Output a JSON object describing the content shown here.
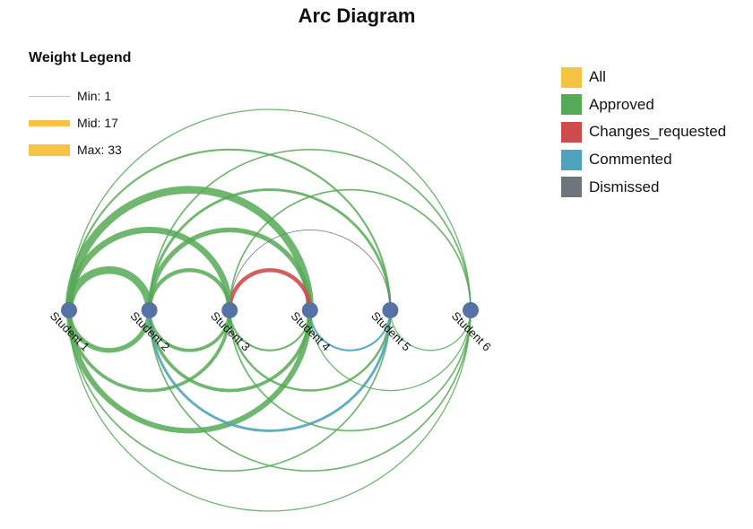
{
  "title": "Arc Diagram",
  "weight_legend": {
    "title": "Weight Legend",
    "items": [
      {
        "label": "Min: 1",
        "weight": 1
      },
      {
        "label": "Mid: 17",
        "weight": 17
      },
      {
        "label": "Max: 33",
        "weight": 33
      }
    ],
    "color": "#f6c343"
  },
  "type_legend": [
    {
      "label": "All",
      "color": "#f6c343"
    },
    {
      "label": "Approved",
      "color": "#56a956"
    },
    {
      "label": "Changes_requested",
      "color": "#cf4b4b"
    },
    {
      "label": "Commented",
      "color": "#4fa3bd"
    },
    {
      "label": "Dismissed",
      "color": "#6d747c"
    }
  ],
  "chart_data": {
    "type": "arc",
    "nodes": [
      "Student 1",
      "Student 2",
      "Student 3",
      "Student 4",
      "Student 5",
      "Student 6"
    ],
    "node_color": "#5472a5",
    "links": [
      {
        "source": "Student 1",
        "target": "Student 2",
        "type": "Approved",
        "weight": 20,
        "side": "above"
      },
      {
        "source": "Student 1",
        "target": "Student 3",
        "type": "Approved",
        "weight": 16,
        "side": "above"
      },
      {
        "source": "Student 1",
        "target": "Student 4",
        "type": "Approved",
        "weight": 20,
        "side": "above"
      },
      {
        "source": "Student 1",
        "target": "Student 5",
        "type": "Approved",
        "weight": 4,
        "side": "above"
      },
      {
        "source": "Student 1",
        "target": "Student 6",
        "type": "Approved",
        "weight": 2,
        "side": "above"
      },
      {
        "source": "Student 2",
        "target": "Student 3",
        "type": "Approved",
        "weight": 10,
        "side": "above"
      },
      {
        "source": "Student 2",
        "target": "Student 4",
        "type": "Approved",
        "weight": 12,
        "side": "above"
      },
      {
        "source": "Student 2",
        "target": "Student 5",
        "type": "Approved",
        "weight": 6,
        "side": "above"
      },
      {
        "source": "Student 2",
        "target": "Student 6",
        "type": "Approved",
        "weight": 3,
        "side": "above"
      },
      {
        "source": "Student 3",
        "target": "Student 4",
        "type": "Changes_requested",
        "weight": 10,
        "side": "above"
      },
      {
        "source": "Student 3",
        "target": "Student 5",
        "type": "Dismissed",
        "weight": 1,
        "side": "above"
      },
      {
        "source": "Student 3",
        "target": "Student 6",
        "type": "Approved",
        "weight": 3,
        "side": "above"
      },
      {
        "source": "Student 1",
        "target": "Student 2",
        "type": "Approved",
        "weight": 12,
        "side": "below"
      },
      {
        "source": "Student 1",
        "target": "Student 3",
        "type": "Approved",
        "weight": 8,
        "side": "below"
      },
      {
        "source": "Student 1",
        "target": "Student 4",
        "type": "Approved",
        "weight": 14,
        "side": "below"
      },
      {
        "source": "Student 1",
        "target": "Student 5",
        "type": "Approved",
        "weight": 3,
        "side": "below"
      },
      {
        "source": "Student 1",
        "target": "Student 6",
        "type": "Approved",
        "weight": 2,
        "side": "below"
      },
      {
        "source": "Student 2",
        "target": "Student 3",
        "type": "Approved",
        "weight": 8,
        "side": "below"
      },
      {
        "source": "Student 2",
        "target": "Student 4",
        "type": "Approved",
        "weight": 8,
        "side": "below"
      },
      {
        "source": "Student 2",
        "target": "Student 5",
        "type": "Commented",
        "weight": 6,
        "side": "below"
      },
      {
        "source": "Student 2",
        "target": "Student 6",
        "type": "Approved",
        "weight": 3,
        "side": "below"
      },
      {
        "source": "Student 3",
        "target": "Student 4",
        "type": "Approved",
        "weight": 4,
        "side": "below"
      },
      {
        "source": "Student 3",
        "target": "Student 5",
        "type": "Approved",
        "weight": 5,
        "side": "below"
      },
      {
        "source": "Student 3",
        "target": "Student 6",
        "type": "Approved",
        "weight": 3,
        "side": "below"
      },
      {
        "source": "Student 4",
        "target": "Student 5",
        "type": "Commented",
        "weight": 4,
        "side": "below"
      },
      {
        "source": "Student 4",
        "target": "Student 6",
        "type": "Approved",
        "weight": 2,
        "side": "below"
      },
      {
        "source": "Student 5",
        "target": "Student 6",
        "type": "Approved",
        "weight": 2,
        "side": "below"
      }
    ]
  }
}
